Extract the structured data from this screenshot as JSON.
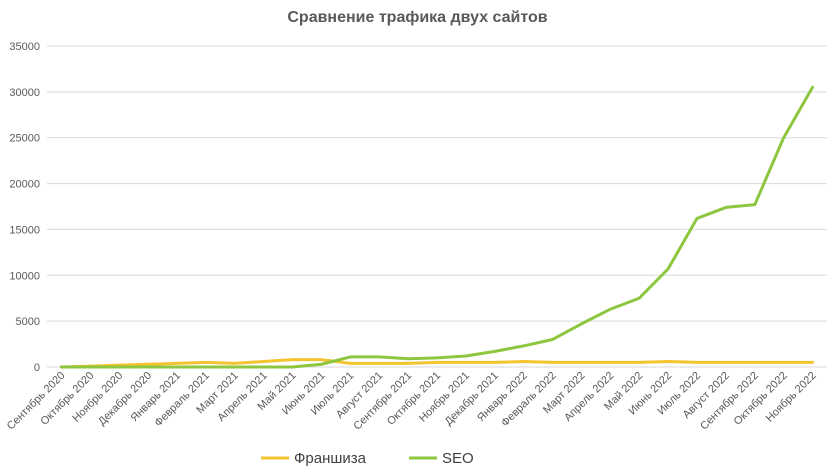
{
  "chart_data": {
    "type": "line",
    "title": "Сравнение трафика двух сайтов",
    "xlabel": "",
    "ylabel": "",
    "ylim": [
      0,
      35000
    ],
    "yticks": [
      0,
      5000,
      10000,
      15000,
      20000,
      25000,
      30000,
      35000
    ],
    "grid": true,
    "legend_position": "bottom",
    "categories": [
      "Сентябрь 2020",
      "Октябрь 2020",
      "Ноябрь 2020",
      "Декабрь 2020",
      "Январь 2021",
      "Февраль 2021",
      "Март 2021",
      "Апрель 2021",
      "Май 2021",
      "Июнь 2021",
      "Июль 2021",
      "Август 2021",
      "Сентябрь 2021",
      "Октябрь 2021",
      "Ноябрь 2021",
      "Декабрь 2021",
      "Январь 2022",
      "Февраль 2022",
      "Март 2022",
      "Апрель 2022",
      "Май 2022",
      "Июнь 2022",
      "Июль 2022",
      "Август 2022",
      "Сентябрь 2022",
      "Октябрь 2022",
      "Ноябрь 2022"
    ],
    "series": [
      {
        "name": "Франшиза",
        "color": "#F4C430",
        "values": [
          0,
          100,
          200,
          300,
          400,
          500,
          400,
          600,
          800,
          800,
          400,
          400,
          400,
          500,
          500,
          500,
          600,
          500,
          500,
          500,
          500,
          600,
          500,
          500,
          500,
          500,
          500
        ]
      },
      {
        "name": "SEO",
        "color": "#8DC63F",
        "values": [
          0,
          0,
          0,
          0,
          0,
          0,
          0,
          0,
          0,
          300,
          1100,
          1100,
          900,
          1000,
          1200,
          1700,
          2300,
          3000,
          4700,
          6300,
          7500,
          10700,
          16200,
          17400,
          17700,
          25000,
          30500
        ]
      }
    ]
  }
}
